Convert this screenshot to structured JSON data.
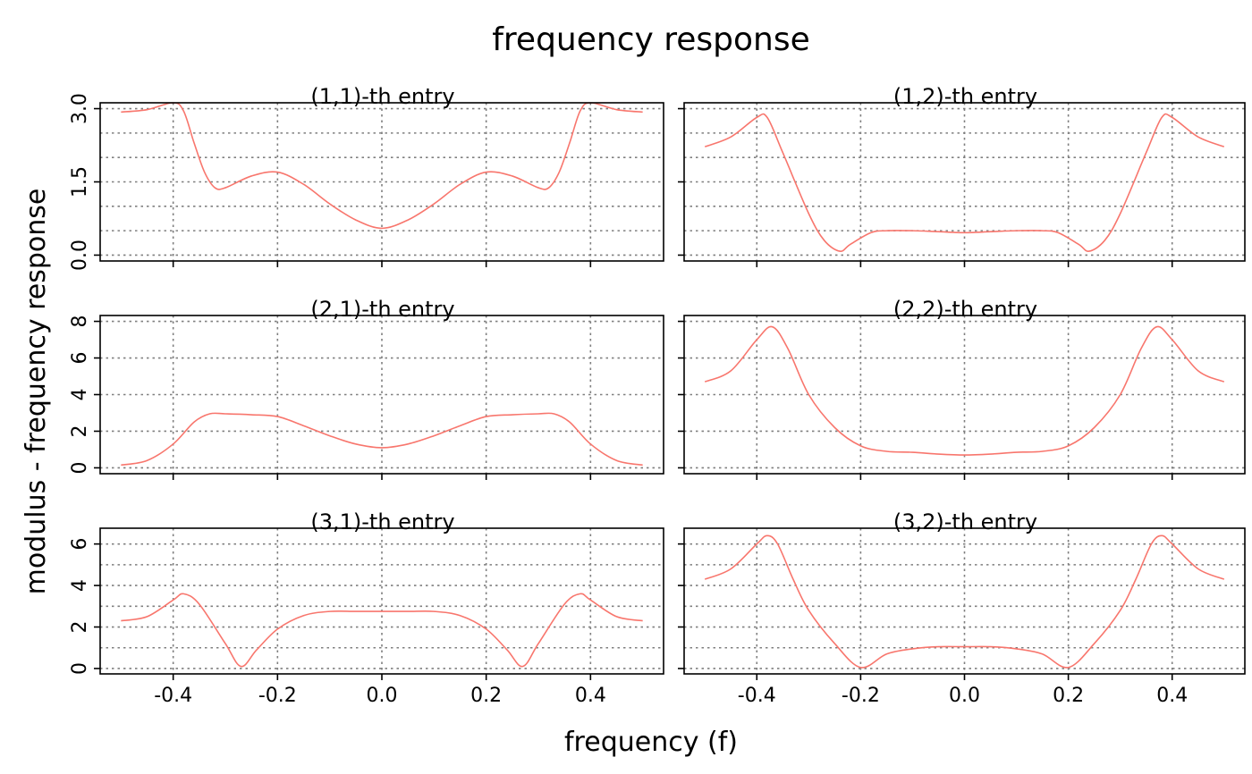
{
  "chart_data": {
    "type": "line",
    "title": "frequency response",
    "xlabel": "frequency (f)",
    "ylabel": "modulus - frequency response",
    "series_color": "#F8766D",
    "grid_color": "#7f7f7f",
    "grid": true,
    "x_ticks": [
      -0.4,
      -0.2,
      0.0,
      0.2,
      0.4
    ],
    "x_tick_labels": [
      "-0.4",
      "-0.2",
      "0.0",
      "0.2",
      "0.4"
    ],
    "xlim": [
      -0.5,
      0.5
    ],
    "rows": [
      {
        "ylim": [
          0,
          3.0
        ],
        "y_ticks": [
          0,
          1.5,
          3.0
        ],
        "y_tick_labels": [
          "0.0",
          "1.5",
          "3.0"
        ],
        "minor_ticks": [
          0.5,
          1.0,
          2.0,
          2.5
        ],
        "panels": [
          {
            "title": "(1,1)-th entry",
            "x": [
              -0.5,
              -0.45,
              -0.4,
              -0.38,
              -0.36,
              -0.34,
              -0.32,
              -0.3,
              -0.25,
              -0.2,
              -0.15,
              -0.1,
              -0.05,
              0.0,
              0.05,
              0.1,
              0.15,
              0.2,
              0.25,
              0.3,
              0.32,
              0.34,
              0.36,
              0.38,
              0.4,
              0.45,
              0.5
            ],
            "y": [
              2.93,
              2.98,
              3.12,
              2.95,
              2.3,
              1.7,
              1.38,
              1.38,
              1.62,
              1.7,
              1.45,
              1.05,
              0.72,
              0.55,
              0.72,
              1.05,
              1.45,
              1.7,
              1.62,
              1.38,
              1.38,
              1.7,
              2.3,
              2.95,
              3.12,
              2.98,
              2.93
            ]
          },
          {
            "title": "(1,2)-th entry",
            "x": [
              -0.5,
              -0.45,
              -0.4,
              -0.38,
              -0.35,
              -0.3,
              -0.27,
              -0.24,
              -0.22,
              -0.18,
              -0.15,
              -0.1,
              -0.05,
              0.0,
              0.05,
              0.1,
              0.15,
              0.18,
              0.22,
              0.24,
              0.27,
              0.3,
              0.35,
              0.38,
              0.4,
              0.45,
              0.5
            ],
            "y": [
              2.22,
              2.42,
              2.82,
              2.82,
              2.1,
              0.85,
              0.3,
              0.08,
              0.22,
              0.46,
              0.5,
              0.5,
              0.48,
              0.46,
              0.48,
              0.5,
              0.5,
              0.46,
              0.22,
              0.08,
              0.3,
              0.85,
              2.1,
              2.82,
              2.82,
              2.42,
              2.22
            ]
          }
        ]
      },
      {
        "ylim": [
          0,
          8
        ],
        "y_ticks": [
          0,
          2,
          4,
          6,
          8
        ],
        "y_tick_labels": [
          "0",
          "2",
          "4",
          "6",
          "8"
        ],
        "minor_ticks": [],
        "panels": [
          {
            "title": "(2,1)-th entry",
            "x": [
              -0.5,
              -0.45,
              -0.4,
              -0.36,
              -0.33,
              -0.3,
              -0.25,
              -0.2,
              -0.15,
              -0.1,
              -0.05,
              0.0,
              0.05,
              0.1,
              0.15,
              0.2,
              0.25,
              0.3,
              0.33,
              0.36,
              0.4,
              0.45,
              0.5
            ],
            "y": [
              0.15,
              0.4,
              1.3,
              2.5,
              2.95,
              2.95,
              2.9,
              2.8,
              2.3,
              1.75,
              1.3,
              1.1,
              1.3,
              1.75,
              2.3,
              2.8,
              2.9,
              2.95,
              2.95,
              2.5,
              1.3,
              0.4,
              0.15
            ]
          },
          {
            "title": "(2,2)-th entry",
            "x": [
              -0.5,
              -0.45,
              -0.4,
              -0.37,
              -0.34,
              -0.3,
              -0.25,
              -0.2,
              -0.15,
              -0.1,
              -0.05,
              0.0,
              0.05,
              0.1,
              0.15,
              0.2,
              0.25,
              0.3,
              0.34,
              0.37,
              0.4,
              0.45,
              0.5
            ],
            "y": [
              4.7,
              5.3,
              7.0,
              7.7,
              6.5,
              4.0,
              2.2,
              1.2,
              0.9,
              0.85,
              0.75,
              0.7,
              0.75,
              0.85,
              0.9,
              1.2,
              2.2,
              4.0,
              6.5,
              7.7,
              7.0,
              5.3,
              4.7
            ]
          }
        ]
      },
      {
        "ylim": [
          0,
          6.5
        ],
        "y_ticks": [
          0,
          2,
          4,
          6
        ],
        "y_tick_labels": [
          "0",
          "2",
          "4",
          "6"
        ],
        "minor_ticks": [
          1,
          3,
          5
        ],
        "panels": [
          {
            "title": "(3,1)-th entry",
            "x": [
              -0.5,
              -0.45,
              -0.4,
              -0.38,
              -0.35,
              -0.3,
              -0.27,
              -0.24,
              -0.2,
              -0.15,
              -0.1,
              -0.05,
              0.0,
              0.05,
              0.1,
              0.15,
              0.2,
              0.24,
              0.27,
              0.3,
              0.35,
              0.38,
              0.4,
              0.45,
              0.5
            ],
            "y": [
              2.3,
              2.5,
              3.3,
              3.6,
              3.1,
              1.2,
              0.1,
              0.9,
              1.9,
              2.55,
              2.75,
              2.75,
              2.75,
              2.75,
              2.75,
              2.55,
              1.9,
              0.9,
              0.1,
              1.2,
              3.1,
              3.6,
              3.3,
              2.5,
              2.3
            ]
          },
          {
            "title": "(3,2)-th entry",
            "x": [
              -0.5,
              -0.45,
              -0.4,
              -0.38,
              -0.36,
              -0.33,
              -0.3,
              -0.25,
              -0.2,
              -0.15,
              -0.1,
              -0.05,
              0.0,
              0.05,
              0.1,
              0.15,
              0.2,
              0.25,
              0.3,
              0.33,
              0.36,
              0.38,
              0.4,
              0.45,
              0.5
            ],
            "y": [
              4.3,
              4.8,
              6.0,
              6.4,
              6.0,
              4.3,
              2.8,
              1.2,
              0.05,
              0.7,
              0.95,
              1.05,
              1.05,
              1.05,
              0.95,
              0.7,
              0.05,
              1.2,
              2.8,
              4.3,
              6.0,
              6.4,
              6.0,
              4.8,
              4.3
            ]
          }
        ]
      }
    ]
  }
}
